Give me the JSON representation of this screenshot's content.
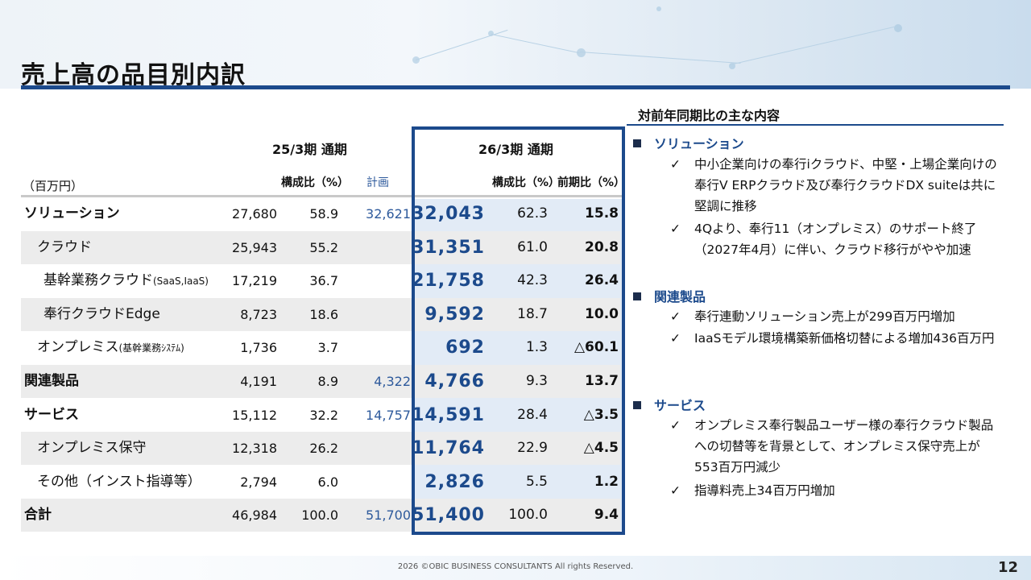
{
  "title": "売上高の品目別内訳",
  "table": {
    "fy25_header": "25/3期 通期",
    "fy26_header": "26/3期 通期",
    "unit": "（百万円）",
    "col_share_25": "構成比（%）",
    "col_plan": "計画",
    "col_share_26": "構成比（%）",
    "col_yoy": "前期比（%）",
    "rows": [
      {
        "name": "ソリューション",
        "note": "",
        "prev": "27,680",
        "prev_share": "58.9",
        "plan": "32,621",
        "cur": "32,043",
        "cur_share": "62.3",
        "yoy": "15.8"
      },
      {
        "name": "クラウド",
        "note": "",
        "prev": "25,943",
        "prev_share": "55.2",
        "plan": "",
        "cur": "31,351",
        "cur_share": "61.0",
        "yoy": "20.8"
      },
      {
        "name": "基幹業務クラウド",
        "note": "(SaaS,IaaS)",
        "prev": "17,219",
        "prev_share": "36.7",
        "plan": "",
        "cur": "21,758",
        "cur_share": "42.3",
        "yoy": "26.4"
      },
      {
        "name": "奉行クラウドEdge",
        "note": "",
        "prev": "8,723",
        "prev_share": "18.6",
        "plan": "",
        "cur": "9,592",
        "cur_share": "18.7",
        "yoy": "10.0"
      },
      {
        "name": "オンプレミス",
        "note": "(基幹業務ｼｽﾃﾑ)",
        "prev": "1,736",
        "prev_share": "3.7",
        "plan": "",
        "cur": "692",
        "cur_share": "1.3",
        "yoy": "△60.1"
      },
      {
        "name": "関連製品",
        "note": "",
        "prev": "4,191",
        "prev_share": "8.9",
        "plan": "4,322",
        "cur": "4,766",
        "cur_share": "9.3",
        "yoy": "13.7"
      },
      {
        "name": "サービス",
        "note": "",
        "prev": "15,112",
        "prev_share": "32.2",
        "plan": "14,757",
        "cur": "14,591",
        "cur_share": "28.4",
        "yoy": "△3.5"
      },
      {
        "name": "オンプレミス保守",
        "note": "",
        "prev": "12,318",
        "prev_share": "26.2",
        "plan": "",
        "cur": "11,764",
        "cur_share": "22.9",
        "yoy": "△4.5"
      },
      {
        "name": "その他（インスト指導等）",
        "note": "",
        "prev": "2,794",
        "prev_share": "6.0",
        "plan": "",
        "cur": "2,826",
        "cur_share": "5.5",
        "yoy": "1.2"
      },
      {
        "name": "合計",
        "note": "",
        "prev": "46,984",
        "prev_share": "100.0",
        "plan": "51,700",
        "cur": "51,400",
        "cur_share": "100.0",
        "yoy": "9.4"
      }
    ]
  },
  "right": {
    "title": "対前年同期比の主な内容",
    "sections": [
      {
        "heading": "ソリューション",
        "items": [
          "中小企業向けの奉行iクラウド、中堅・上場企業向けの奉行V ERPクラウド及び奉行クラウドDX suiteは共に堅調に推移",
          "4Qより、奉行11（オンプレミス）のサポート終了（2027年4月）に伴い、クラウド移行がやや加速"
        ]
      },
      {
        "heading": "関連製品",
        "items": [
          "奉行連動ソリューション売上が299百万円増加",
          "IaaSモデル環境構築新価格切替による増加436百万円"
        ]
      },
      {
        "heading": "サービス",
        "items": [
          "オンプレミス奉行製品ユーザー様の奉行クラウド製品への切替等を背景として、オンプレミス保守売上が553百万円減少",
          "指導料売上34百万円増加"
        ]
      }
    ]
  },
  "footer": {
    "copyright": "2026 ©OBIC BUSINESS CONSULTANTS All rights Reserved.",
    "page": "12"
  },
  "colors": {
    "accent": "#1c4a8c",
    "plan": "#2e5a9c",
    "shade": "#ececec",
    "highlight": "#e2ebf6"
  }
}
